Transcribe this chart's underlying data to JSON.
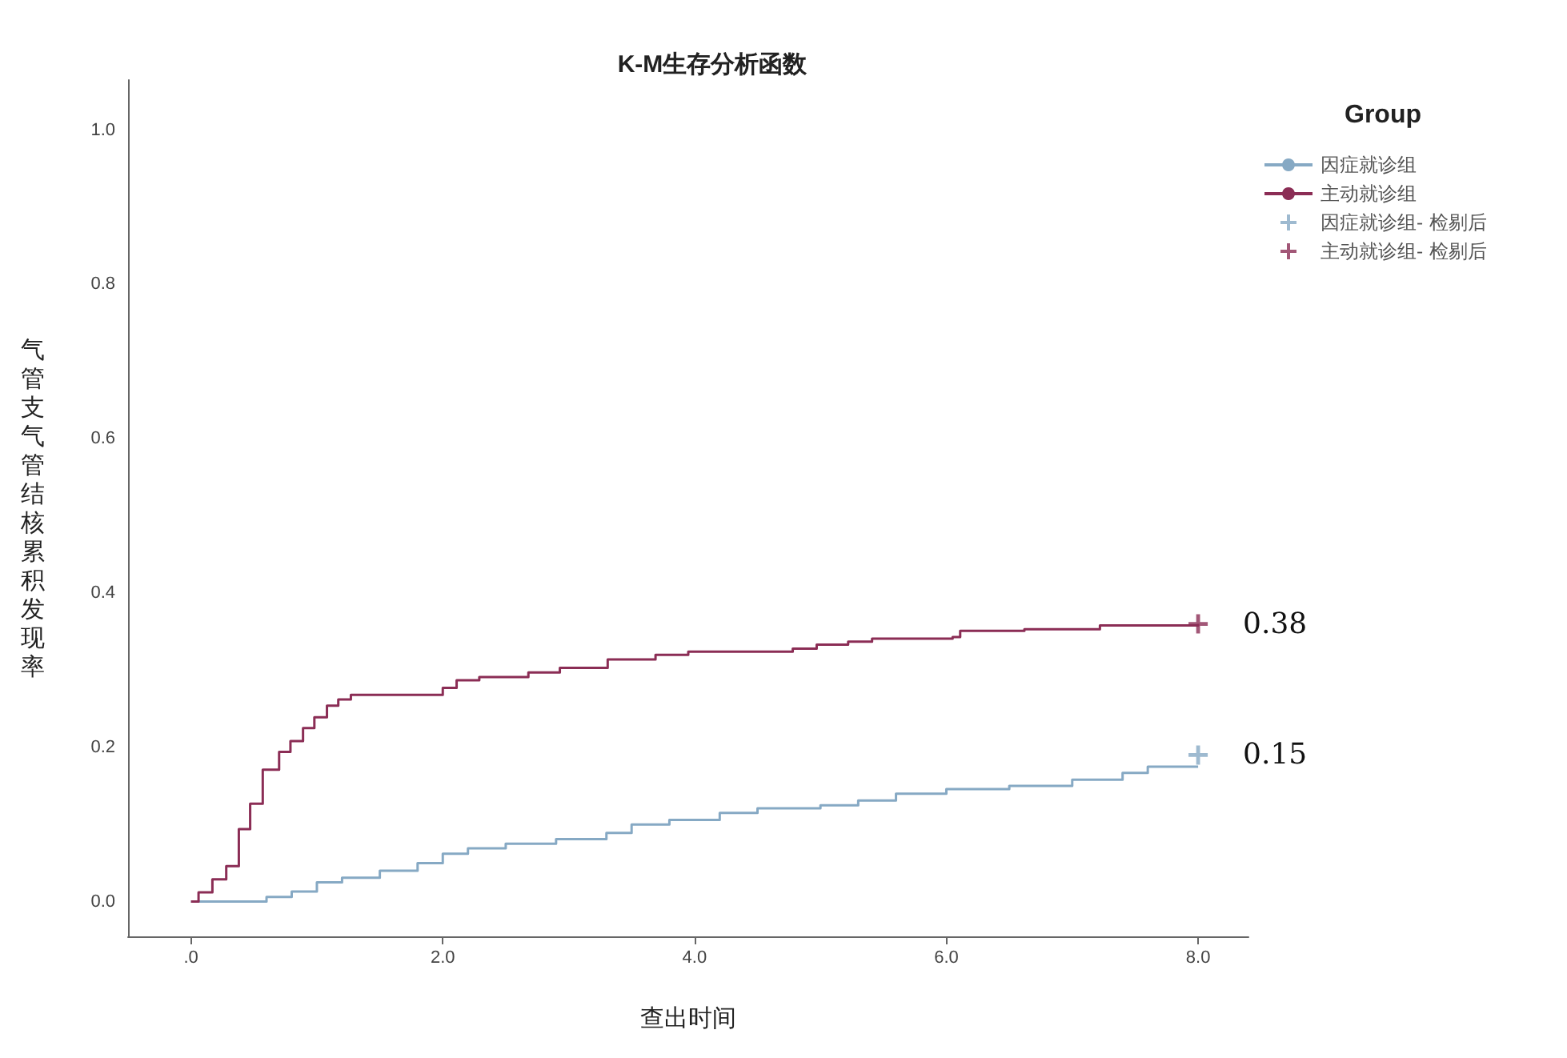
{
  "chart_data": {
    "type": "step",
    "title": "K-M生存分析函数",
    "xlabel": "查出时间",
    "ylabel": "气管支气管结核累积发现率",
    "legend_title": "Group",
    "legend": "top right",
    "grid": false,
    "line_style": "solid",
    "xlim": [
      -0.5,
      8.4
    ],
    "ylim": [
      -0.045,
      1.065
    ],
    "xticks": [
      {
        "value": 0,
        "label": ".0"
      },
      {
        "value": 2,
        "label": "2.0"
      },
      {
        "value": 4,
        "label": "4.0"
      },
      {
        "value": 6,
        "label": "6.0"
      },
      {
        "value": 8,
        "label": "8.0"
      }
    ],
    "yticks": [
      {
        "value": 0,
        "label": "0.0"
      },
      {
        "value": 0.2,
        "label": "0.2"
      },
      {
        "value": 0.4,
        "label": "0.4"
      },
      {
        "value": 0.6,
        "label": "0.6"
      },
      {
        "value": 0.8,
        "label": "0.8"
      },
      {
        "value": 1,
        "label": "1.0"
      }
    ],
    "series": [
      {
        "name": "因症就诊组",
        "color": "#86a9c4",
        "x": [
          0,
          0.6,
          0.8,
          1.0,
          1.2,
          1.5,
          1.8,
          2.0,
          2.2,
          2.5,
          2.9,
          3.3,
          3.5,
          3.8,
          4.2,
          4.5,
          5.0,
          5.3,
          5.6,
          6.0,
          6.5,
          7.0,
          7.4,
          7.6,
          8.0
        ],
        "values": [
          0,
          0.006,
          0.013,
          0.025,
          0.031,
          0.04,
          0.05,
          0.062,
          0.069,
          0.075,
          0.081,
          0.089,
          0.1,
          0.106,
          0.115,
          0.121,
          0.125,
          0.131,
          0.14,
          0.146,
          0.15,
          0.158,
          0.167,
          0.175,
          0.175
        ]
      },
      {
        "name": "主动就诊组",
        "color": "#8b2d55",
        "x": [
          0,
          0.06,
          0.17,
          0.28,
          0.38,
          0.47,
          0.57,
          0.7,
          0.79,
          0.89,
          0.98,
          1.08,
          1.17,
          1.27,
          2.0,
          2.11,
          2.29,
          2.68,
          2.93,
          3.31,
          3.69,
          3.95,
          4.78,
          4.97,
          5.22,
          5.41,
          6.05,
          6.11,
          6.62,
          7.22,
          8.0
        ],
        "values": [
          0,
          0.012,
          0.029,
          0.046,
          0.094,
          0.127,
          0.171,
          0.194,
          0.208,
          0.225,
          0.239,
          0.254,
          0.262,
          0.268,
          0.277,
          0.287,
          0.291,
          0.297,
          0.303,
          0.314,
          0.32,
          0.324,
          0.328,
          0.333,
          0.337,
          0.341,
          0.343,
          0.351,
          0.353,
          0.358,
          0.36
        ]
      },
      {
        "name": "因症就诊组- 检剔后",
        "type": "scatter",
        "marker": "cross",
        "color": "#86a9c4",
        "x": [
          8
        ],
        "values": [
          0.19
        ]
      },
      {
        "name": "主动就诊组- 检剔后",
        "type": "scatter",
        "marker": "cross",
        "color": "#8b2d55",
        "x": [
          8
        ],
        "values": [
          0.36
        ]
      }
    ],
    "annotations": [
      {
        "text": "0.38",
        "x": 8,
        "y": 0.36
      },
      {
        "text": "0.15",
        "x": 8,
        "y": 0.19
      }
    ]
  }
}
